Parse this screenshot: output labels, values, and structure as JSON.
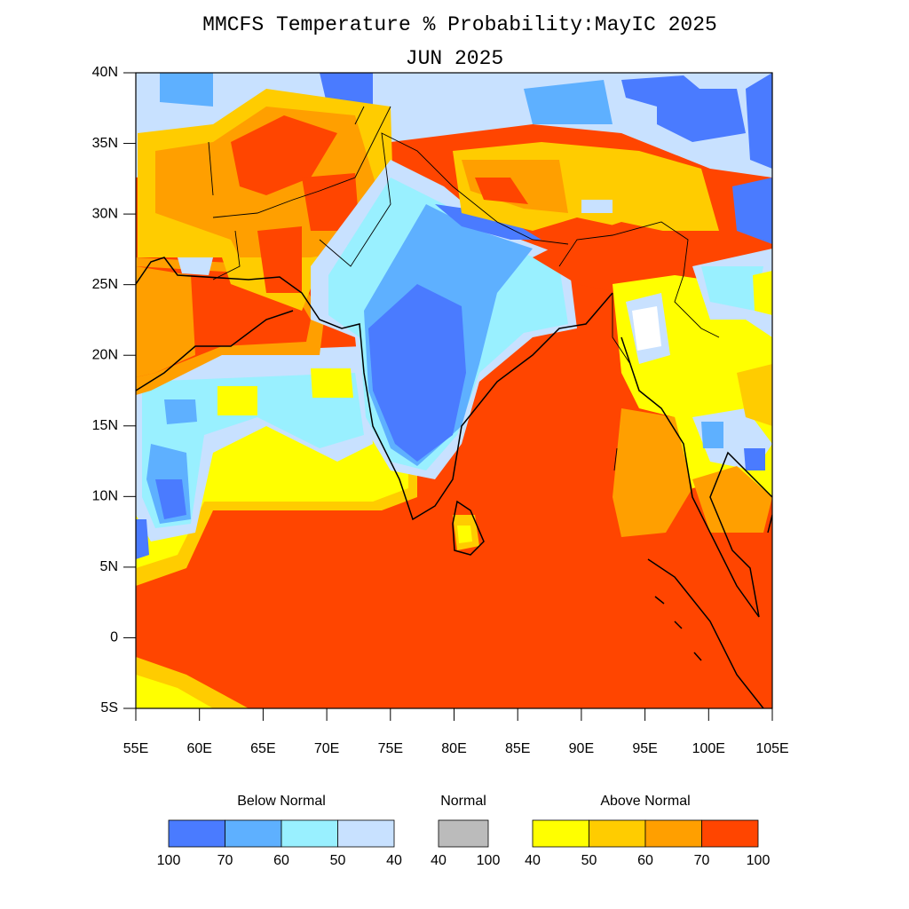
{
  "title": "MMCFS Temperature % Probability:MayIC 2025",
  "subtitle": "JUN 2025",
  "lat_labels": [
    "40N",
    "35N",
    "30N",
    "25N",
    "20N",
    "15N",
    "10N",
    "5N",
    "0",
    "5S"
  ],
  "lon_labels": [
    "55E",
    "60E",
    "65E",
    "70E",
    "75E",
    "80E",
    "85E",
    "90E",
    "95E",
    "100E",
    "105E"
  ],
  "legend": [
    {
      "title": "Below Normal",
      "colors": [
        "#4a7bff",
        "#5eb0ff",
        "#99f0ff",
        "#c8e1ff"
      ],
      "labels": [
        100,
        70,
        60,
        50,
        40
      ]
    },
    {
      "title": "Normal",
      "colors": [
        "#bbbbbb"
      ],
      "labels": [
        40,
        100
      ]
    },
    {
      "title": "Above Normal",
      "colors": [
        "#ffff00",
        "#ffcc00",
        "#ff9f00",
        "#ff4500"
      ],
      "labels": [
        40,
        50,
        60,
        70,
        100
      ]
    }
  ]
}
